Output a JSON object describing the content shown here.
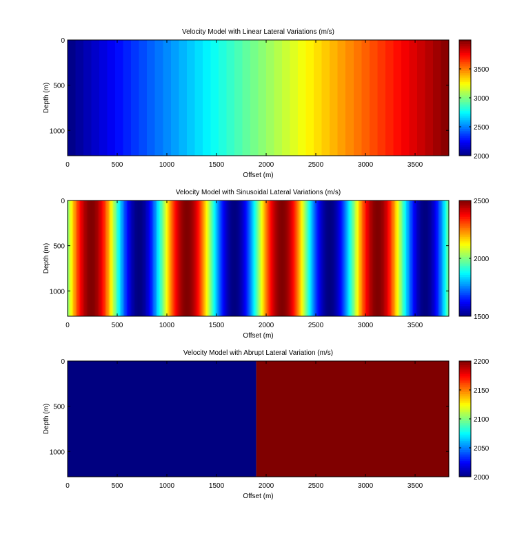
{
  "figure": {
    "colormap": "jet",
    "background": "#ffffff"
  },
  "chart_data": [
    {
      "type": "heatmap",
      "title": "Velocity Model with Linear Lateral Variations (m/s)",
      "xlabel": "Offset (m)",
      "ylabel": "Depth (m)",
      "xlim": [
        0,
        3840
      ],
      "ylim": [
        0,
        1280
      ],
      "y_reversed": true,
      "x_ticks": [
        0,
        500,
        1000,
        1500,
        2000,
        2500,
        3000,
        3500
      ],
      "y_ticks": [
        0,
        500,
        1000
      ],
      "colorbar": {
        "range": [
          2000,
          4000
        ],
        "ticks": [
          2000,
          2500,
          3000,
          3500
        ]
      },
      "pattern": "linear",
      "lateral_profile": {
        "x": [
          0,
          3840
        ],
        "velocity": [
          2000,
          4000
        ]
      },
      "vertical_variation": "none",
      "grid": false
    },
    {
      "type": "heatmap",
      "title": "Velocity Model with Sinusoidal Lateral Variations (m/s)",
      "xlabel": "Offset (m)",
      "ylabel": "Depth (m)",
      "xlim": [
        0,
        3840
      ],
      "ylim": [
        0,
        1280
      ],
      "y_reversed": true,
      "x_ticks": [
        0,
        500,
        1000,
        1500,
        2000,
        2500,
        3000,
        3500
      ],
      "y_ticks": [
        0,
        500,
        1000
      ],
      "colorbar": {
        "range": [
          1500,
          2500
        ],
        "ticks": [
          1500,
          2000,
          2500
        ]
      },
      "pattern": "sinusoidal",
      "lateral_profile": {
        "mean_velocity": 2000,
        "amplitude": 500,
        "wavelength_m": 960,
        "velocity_at_x0": 2000,
        "peak_x": [
          240,
          1200,
          2160,
          3120
        ],
        "trough_x": [
          720,
          1680,
          2640,
          3600
        ]
      },
      "vertical_variation": "none",
      "grid": false
    },
    {
      "type": "heatmap",
      "title": "Velocity Model with Abrupt Lateral Variation (m/s)",
      "xlabel": "Offset (m)",
      "ylabel": "Depth (m)",
      "xlim": [
        0,
        3840
      ],
      "ylim": [
        0,
        1280
      ],
      "y_reversed": true,
      "x_ticks": [
        0,
        500,
        1000,
        1500,
        2000,
        2500,
        3000,
        3500
      ],
      "y_ticks": [
        0,
        500,
        1000
      ],
      "colorbar": {
        "range": [
          2000,
          2200
        ],
        "ticks": [
          2000,
          2050,
          2100,
          2150,
          2200
        ]
      },
      "pattern": "step",
      "lateral_profile": {
        "boundary_x": 1900,
        "left_velocity": 2000,
        "right_velocity": 2200
      },
      "vertical_variation": "none",
      "grid": false
    }
  ]
}
